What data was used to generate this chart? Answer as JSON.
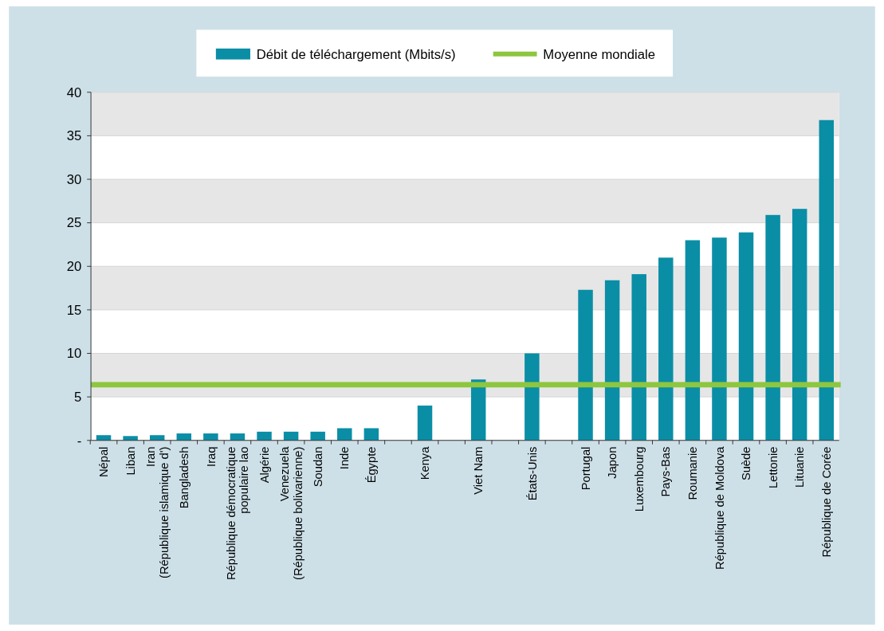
{
  "chart_data": {
    "type": "bar",
    "categories": [
      "Népal",
      "Liban",
      "Iran\n(République islamique d')",
      "Bangladesh",
      "Iraq",
      "République démocratique\npopulaire lao",
      "Algérie",
      "Venezuela\n(République bolivarienne)",
      "Soudan",
      "Inde",
      "Égypte",
      null,
      "Kenya",
      null,
      "Viet Nam",
      null,
      "États-Unis",
      null,
      "Portugal",
      "Japon",
      "Luxembourg",
      "Pays-Bas",
      "Roumanie",
      "République de Moldova",
      "Suède",
      "Lettonie",
      "Lituanie",
      "République de Corée"
    ],
    "series": [
      {
        "name": "Débit de téléchargement (Mbits/s)",
        "color": "#0a8ea6",
        "values": [
          0.6,
          0.5,
          0.6,
          0.8,
          0.8,
          0.8,
          1.0,
          1.0,
          1.0,
          1.4,
          1.4,
          null,
          4.0,
          null,
          7.0,
          null,
          10.0,
          null,
          17.3,
          18.4,
          19.1,
          21.0,
          23.0,
          23.3,
          23.9,
          25.9,
          26.6,
          36.8
        ]
      }
    ],
    "ylim": [
      0,
      40
    ],
    "yticks": [
      {
        "value": 0,
        "label": "-"
      },
      5,
      10,
      15,
      20,
      25,
      30,
      35,
      40
    ],
    "grid": "y",
    "legend": "top",
    "ref_lines": [
      {
        "axis": "y",
        "value": 6.4,
        "label": "Moyenne mondiale",
        "color": "#8dc63f"
      }
    ]
  }
}
